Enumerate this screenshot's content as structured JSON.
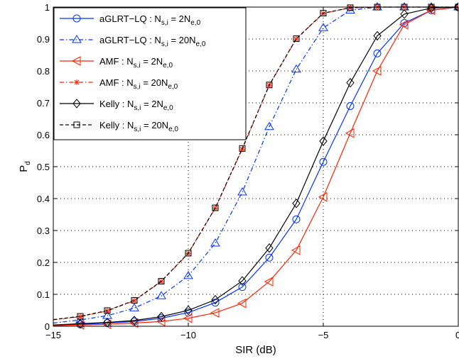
{
  "chart_data": {
    "type": "line",
    "title": "",
    "xlabel": "SIR (dB)",
    "ylabel_main": "P",
    "ylabel_sub": "d",
    "xlim": [
      -15,
      0
    ],
    "ylim": [
      0,
      1
    ],
    "xticks": [
      -15,
      -10,
      -5,
      0
    ],
    "yticks": [
      0,
      0.1,
      0.2,
      0.3,
      0.4,
      0.5,
      0.6,
      0.7,
      0.8,
      0.9,
      1
    ],
    "xtick_labels": [
      "−15",
      "−10",
      "−5",
      "0"
    ],
    "ytick_labels": [
      "0",
      "0.1",
      "0.2",
      "0.3",
      "0.4",
      "0.5",
      "0.6",
      "0.7",
      "0.8",
      "0.9",
      "1"
    ],
    "grid": true,
    "legend_position": "top-left",
    "x": [
      -15,
      -14,
      -13,
      -12,
      -11,
      -10,
      -9,
      -8,
      -7,
      -6,
      -5,
      -4,
      -3,
      -2,
      -1,
      0
    ],
    "series": [
      {
        "name": "aGLRT−LQ : N_{s,i} = 2N_{e,0}",
        "label_main": "aGLRT−LQ : N",
        "label_sub1": "s,i",
        "label_mid": " = 2N",
        "label_sub2": "e,0",
        "color": "#0033ff",
        "dash": "solid",
        "marker": "circle",
        "values": [
          0.003,
          0.006,
          0.01,
          0.015,
          0.025,
          0.043,
          0.074,
          0.123,
          0.215,
          0.335,
          0.515,
          0.69,
          0.855,
          0.95,
          0.99,
          1.0
        ]
      },
      {
        "name": "aGLRT−LQ : N_{s,i} = 20N_{e,0}",
        "label_main": "aGLRT−LQ : N",
        "label_sub1": "s,i",
        "label_mid": " = 20N",
        "label_sub2": "e,0",
        "color": "#0033ff",
        "dash": "dashdot",
        "marker": "triangle-up",
        "values": [
          0.01,
          0.02,
          0.033,
          0.057,
          0.095,
          0.158,
          0.26,
          0.42,
          0.625,
          0.805,
          0.935,
          0.99,
          1.0,
          1.0,
          1.0,
          1.0
        ]
      },
      {
        "name": "AMF : N_{s,i} = 2N_{e,0}",
        "label_main": "AMF : N",
        "label_sub1": "s,i",
        "label_mid": " = 2N",
        "label_sub2": "e,0",
        "color": "#ff2200",
        "dash": "solid",
        "marker": "triangle-left",
        "values": [
          0.002,
          0.004,
          0.006,
          0.01,
          0.015,
          0.025,
          0.042,
          0.072,
          0.14,
          0.238,
          0.405,
          0.605,
          0.8,
          0.945,
          0.99,
          1.0
        ]
      },
      {
        "name": "AMF : N_{s,i} = 20N_{e,0}",
        "label_main": "AMF : N",
        "label_sub1": "s,i",
        "label_mid": " = 20N",
        "label_sub2": "e,0",
        "color": "#ff2200",
        "dash": "dashdot",
        "marker": "asterisk",
        "values": [
          0.02,
          0.03,
          0.048,
          0.08,
          0.14,
          0.228,
          0.37,
          0.555,
          0.755,
          0.9,
          0.98,
          0.998,
          1.0,
          1.0,
          1.0,
          1.0
        ]
      },
      {
        "name": "Kelly : N_{s,i} = 2N_{e,0}",
        "label_main": "Kelly : N",
        "label_sub1": "s,i",
        "label_mid": " = 2N",
        "label_sub2": "e,0",
        "color": "#000000",
        "dash": "solid",
        "marker": "diamond",
        "values": [
          0.004,
          0.008,
          0.012,
          0.018,
          0.03,
          0.05,
          0.083,
          0.142,
          0.245,
          0.385,
          0.58,
          0.763,
          0.91,
          0.978,
          0.997,
          1.0
        ]
      },
      {
        "name": "Kelly : N_{s,i} = 20N_{e,0}",
        "label_main": "Kelly : N",
        "label_sub1": "s,i",
        "label_mid": " = 20N",
        "label_sub2": "e,0",
        "color": "#000000",
        "dash": "dashed",
        "marker": "square",
        "values": [
          0.021,
          0.031,
          0.049,
          0.081,
          0.141,
          0.229,
          0.371,
          0.557,
          0.756,
          0.901,
          0.981,
          0.998,
          1.0,
          1.0,
          1.0,
          1.0
        ]
      }
    ]
  }
}
